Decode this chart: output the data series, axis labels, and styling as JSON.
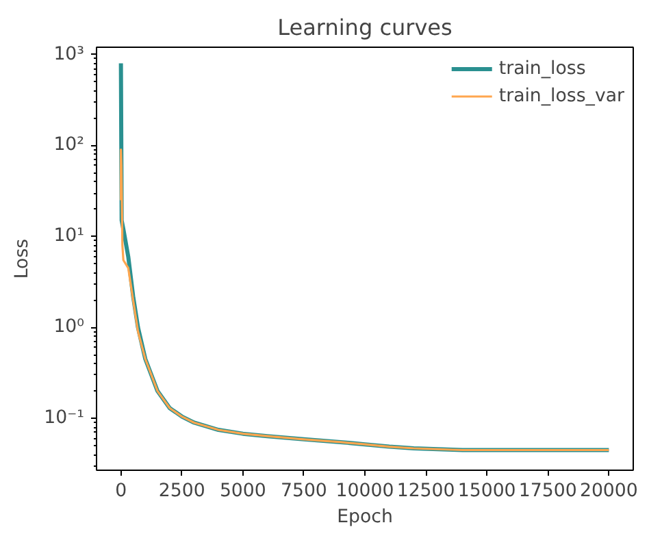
{
  "chart_data": {
    "type": "line",
    "title": "Learning curves",
    "xlabel": "Epoch",
    "ylabel": "Loss",
    "log": "y",
    "legend": "top right",
    "grid": false,
    "line_style": "solid",
    "marker": "none",
    "xlim": [
      -1000,
      21000
    ],
    "xticks": [
      0,
      2500,
      5000,
      7500,
      10000,
      12500,
      15000,
      17500,
      20000
    ],
    "ylim": [
      0.027,
      1200
    ],
    "yticks": [
      {
        "value": 0.1,
        "label": "10⁻¹"
      },
      {
        "value": 1,
        "label": "10⁰"
      },
      {
        "value": 10,
        "label": "10¹"
      },
      {
        "value": 100,
        "label": "10²"
      },
      {
        "value": 1000,
        "label": "10³"
      }
    ],
    "series": [
      {
        "name": "train_loss",
        "color": "#2a9090",
        "x": [
          0,
          30,
          100,
          300,
          500,
          700,
          1000,
          1500,
          2000,
          2500,
          3000,
          4000,
          5000,
          6000,
          7500,
          9000,
          10000,
          11000,
          12000,
          13000,
          14000,
          16000,
          18000,
          20000
        ],
        "values": [
          800,
          15,
          12,
          6,
          2.2,
          1.0,
          0.45,
          0.2,
          0.13,
          0.105,
          0.09,
          0.075,
          0.068,
          0.064,
          0.059,
          0.055,
          0.052,
          0.049,
          0.047,
          0.046,
          0.045,
          0.045,
          0.045,
          0.045
        ]
      },
      {
        "name": "train_loss_var",
        "color": "#ffa64f",
        "x": [
          0,
          0,
          20,
          60,
          100,
          300,
          500,
          700,
          1000,
          1500,
          2000,
          2500,
          3000,
          4000,
          5000,
          6000,
          7500,
          9000,
          10000,
          11000,
          12000,
          13000,
          14000,
          16000,
          18000,
          20000
        ],
        "values": [
          25,
          90,
          60,
          8,
          5.5,
          4.5,
          2,
          0.9,
          0.45,
          0.2,
          0.13,
          0.105,
          0.09,
          0.075,
          0.068,
          0.064,
          0.059,
          0.055,
          0.052,
          0.049,
          0.047,
          0.046,
          0.045,
          0.045,
          0.045,
          0.045
        ]
      }
    ]
  }
}
